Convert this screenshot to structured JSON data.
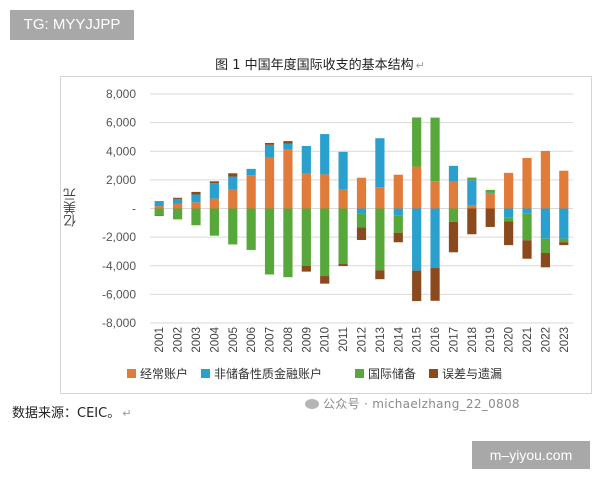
{
  "badges": {
    "tg": "TG: MYYJJPP",
    "site": "m–yiyou.com"
  },
  "figure": {
    "title": "图 1    中国年度国际收支的基本结构"
  },
  "source_note": "数据来源：CEIC。",
  "watermark": "公众号 · michaelzhang_22_0808",
  "chart_data": {
    "type": "bar",
    "stacked": true,
    "title": "图 1    中国年度国际收支的基本结构",
    "xlabel": "",
    "ylabel": "亿美元",
    "ylim": [
      -8000,
      8000
    ],
    "yticks": [
      "8,000",
      "6,000",
      "4,000",
      "2,000",
      "-",
      "-2,000",
      "-4,000",
      "-6,000",
      "-8,000"
    ],
    "grid": true,
    "legend": "bottom",
    "categories": [
      "2001",
      "2002",
      "2003",
      "2004",
      "2005",
      "2006",
      "2007",
      "2008",
      "2009",
      "2010",
      "2011",
      "2012",
      "2013",
      "2014",
      "2015",
      "2016",
      "2017",
      "2018",
      "2019",
      "2020",
      "2021",
      "2022",
      "2023"
    ],
    "series": [
      {
        "name": "经常账户",
        "color": "#e07b39",
        "values": [
          170,
          350,
          430,
          690,
          1320,
          2320,
          3540,
          4150,
          2430,
          2380,
          1360,
          2150,
          1480,
          2360,
          2930,
          1910,
          1880,
          240,
          1030,
          2490,
          3530,
          4020,
          2640
        ]
      },
      {
        "name": "非储备性质金融账户",
        "color": "#2aa0cf",
        "values": [
          350,
          320,
          550,
          1080,
          910,
          450,
          910,
          370,
          1940,
          2820,
          2600,
          -360,
          3430,
          -510,
          -4340,
          -4160,
          1100,
          1730,
          80,
          -610,
          -330,
          -2110,
          -2100
        ]
      },
      {
        "name": "国际储备",
        "color": "#58a73a",
        "values": [
          -470,
          -760,
          -1170,
          -1900,
          -2510,
          -2850,
          -4610,
          -4800,
          -4000,
          -4720,
          -3880,
          -970,
          -4310,
          -1180,
          3430,
          4440,
          -930,
          190,
          190,
          -280,
          -1890,
          -1000,
          -250
        ]
      },
      {
        "name": "误差与遗漏",
        "color": "#8b4a1e",
        "values": [
          -50,
          80,
          180,
          130,
          230,
          -40,
          130,
          190,
          -410,
          -530,
          -140,
          -870,
          -630,
          -670,
          -2130,
          -2290,
          -2130,
          -1800,
          -1290,
          -1670,
          -1290,
          -1000,
          -210
        ]
      }
    ]
  }
}
